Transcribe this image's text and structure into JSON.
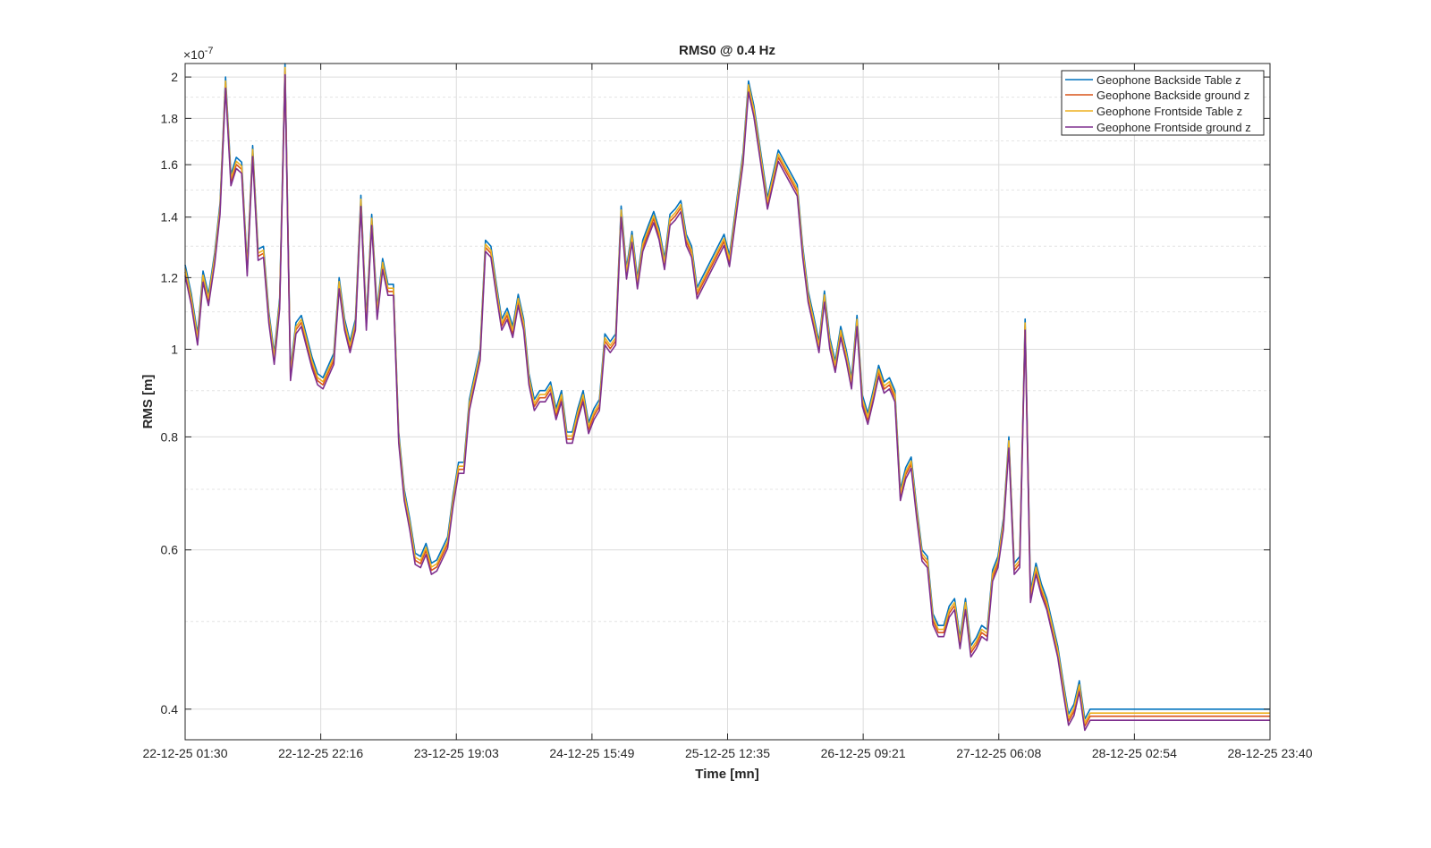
{
  "chart_data": {
    "type": "line",
    "title": "RMS0 @ 0.4 Hz",
    "xlabel": "Time [mn]",
    "ylabel": "RMS [m]",
    "y_exponent_label": "×10",
    "y_exponent_power": "-7",
    "y_scale": "log",
    "ylim": [
      3.7,
      20.7
    ],
    "y_ticks": [
      4,
      6,
      8,
      10,
      12,
      14,
      16,
      18,
      20
    ],
    "y_tick_labels": [
      "0.4",
      "0.6",
      "0.8",
      "1",
      "1.2",
      "1.4",
      "1.6",
      "1.8",
      "2"
    ],
    "xlim": [
      0,
      8
    ],
    "x_tick_labels": [
      "22-12-25 01:30",
      "22-12-25 22:16",
      "23-12-25 19:03",
      "24-12-25 15:49",
      "25-12-25 12:35",
      "26-12-25 09:21",
      "27-12-25 06:08",
      "28-12-25 02:54",
      "28-12-25 23:40"
    ],
    "grid": true,
    "minor_grid": true,
    "legend_position": "top-right",
    "colors": [
      "#0072BD",
      "#D95319",
      "#EDB120",
      "#7E2F8E"
    ],
    "base_series": [
      [
        0.0,
        12.4
      ],
      [
        0.046,
        11.5
      ],
      [
        0.092,
        10.4
      ],
      [
        0.132,
        12.2
      ],
      [
        0.172,
        11.5
      ],
      [
        0.218,
        12.8
      ],
      [
        0.257,
        14.5
      ],
      [
        0.298,
        20.0
      ],
      [
        0.338,
        15.6
      ],
      [
        0.377,
        16.3
      ],
      [
        0.417,
        16.1
      ],
      [
        0.458,
        12.4
      ],
      [
        0.498,
        16.8
      ],
      [
        0.538,
        12.9
      ],
      [
        0.578,
        13.0
      ],
      [
        0.617,
        11.0
      ],
      [
        0.657,
        9.9
      ],
      [
        0.697,
        11.4
      ],
      [
        0.737,
        20.7
      ],
      [
        0.777,
        9.5
      ],
      [
        0.817,
        10.7
      ],
      [
        0.857,
        10.9
      ],
      [
        0.936,
        9.8
      ],
      [
        0.977,
        9.4
      ],
      [
        1.016,
        9.3
      ],
      [
        1.096,
        9.9
      ],
      [
        1.136,
        12.0
      ],
      [
        1.176,
        10.8
      ],
      [
        1.216,
        10.2
      ],
      [
        1.256,
        10.8
      ],
      [
        1.296,
        14.8
      ],
      [
        1.336,
        10.8
      ],
      [
        1.376,
        14.1
      ],
      [
        1.416,
        11.1
      ],
      [
        1.456,
        12.6
      ],
      [
        1.496,
        11.8
      ],
      [
        1.536,
        11.8
      ],
      [
        1.575,
        8.1
      ],
      [
        1.616,
        7.0
      ],
      [
        1.656,
        6.5
      ],
      [
        1.696,
        5.95
      ],
      [
        1.736,
        5.9
      ],
      [
        1.776,
        6.1
      ],
      [
        1.816,
        5.8
      ],
      [
        1.856,
        5.85
      ],
      [
        1.936,
        6.2
      ],
      [
        1.976,
        6.9
      ],
      [
        2.016,
        7.5
      ],
      [
        2.056,
        7.5
      ],
      [
        2.096,
        8.8
      ],
      [
        2.175,
        10.0
      ],
      [
        2.215,
        13.2
      ],
      [
        2.255,
        13.0
      ],
      [
        2.295,
        11.8
      ],
      [
        2.335,
        10.8
      ],
      [
        2.375,
        11.1
      ],
      [
        2.416,
        10.6
      ],
      [
        2.456,
        11.5
      ],
      [
        2.496,
        10.8
      ],
      [
        2.535,
        9.4
      ],
      [
        2.575,
        8.8
      ],
      [
        2.615,
        9.0
      ],
      [
        2.655,
        9.0
      ],
      [
        2.695,
        9.2
      ],
      [
        2.735,
        8.6
      ],
      [
        2.775,
        9.0
      ],
      [
        2.815,
        8.1
      ],
      [
        2.855,
        8.1
      ],
      [
        2.895,
        8.6
      ],
      [
        2.935,
        9.0
      ],
      [
        2.975,
        8.3
      ],
      [
        3.015,
        8.6
      ],
      [
        3.055,
        8.8
      ],
      [
        3.095,
        10.4
      ],
      [
        3.135,
        10.2
      ],
      [
        3.175,
        10.4
      ],
      [
        3.215,
        14.4
      ],
      [
        3.255,
        12.3
      ],
      [
        3.295,
        13.5
      ],
      [
        3.335,
        12.0
      ],
      [
        3.375,
        13.2
      ],
      [
        3.415,
        13.7
      ],
      [
        3.455,
        14.2
      ],
      [
        3.495,
        13.6
      ],
      [
        3.535,
        12.6
      ],
      [
        3.575,
        14.1
      ],
      [
        3.615,
        14.3
      ],
      [
        3.655,
        14.6
      ],
      [
        3.695,
        13.4
      ],
      [
        3.735,
        13.0
      ],
      [
        3.775,
        11.7
      ],
      [
        3.974,
        13.4
      ],
      [
        4.014,
        12.7
      ],
      [
        4.114,
        16.5
      ],
      [
        4.154,
        19.8
      ],
      [
        4.194,
        18.6
      ],
      [
        4.294,
        14.7
      ],
      [
        4.374,
        16.6
      ],
      [
        4.514,
        15.2
      ],
      [
        4.554,
        13.0
      ],
      [
        4.594,
        11.6
      ],
      [
        4.634,
        10.9
      ],
      [
        4.674,
        10.2
      ],
      [
        4.714,
        11.6
      ],
      [
        4.754,
        10.3
      ],
      [
        4.794,
        9.7
      ],
      [
        4.834,
        10.6
      ],
      [
        4.874,
        10.0
      ],
      [
        4.914,
        9.3
      ],
      [
        4.954,
        10.9
      ],
      [
        4.994,
        8.9
      ],
      [
        5.034,
        8.5
      ],
      [
        5.074,
        9.0
      ],
      [
        5.114,
        9.6
      ],
      [
        5.154,
        9.2
      ],
      [
        5.194,
        9.3
      ],
      [
        5.234,
        9.0
      ],
      [
        5.274,
        7.0
      ],
      [
        5.314,
        7.4
      ],
      [
        5.354,
        7.6
      ],
      [
        5.394,
        6.7
      ],
      [
        5.434,
        6.0
      ],
      [
        5.474,
        5.9
      ],
      [
        5.514,
        5.1
      ],
      [
        5.554,
        4.95
      ],
      [
        5.594,
        4.95
      ],
      [
        5.634,
        5.2
      ],
      [
        5.674,
        5.3
      ],
      [
        5.714,
        4.8
      ],
      [
        5.754,
        5.3
      ],
      [
        5.794,
        4.7
      ],
      [
        5.834,
        4.8
      ],
      [
        5.874,
        4.95
      ],
      [
        5.914,
        4.9
      ],
      [
        5.954,
        5.7
      ],
      [
        5.994,
        5.9
      ],
      [
        6.034,
        6.5
      ],
      [
        6.074,
        8.0
      ],
      [
        6.114,
        5.8
      ],
      [
        6.154,
        5.9
      ],
      [
        6.194,
        10.8
      ],
      [
        6.234,
        5.4
      ],
      [
        6.274,
        5.8
      ],
      [
        6.314,
        5.5
      ],
      [
        6.354,
        5.3
      ],
      [
        6.434,
        4.7
      ],
      [
        6.474,
        4.3
      ],
      [
        6.514,
        3.95
      ],
      [
        6.554,
        4.05
      ],
      [
        6.594,
        4.3
      ],
      [
        6.634,
        3.9
      ],
      [
        6.674,
        4.0
      ],
      [
        8.0,
        4.0
      ]
    ],
    "series": [
      {
        "name": "Geophone Backside Table z",
        "offset": 1.0
      },
      {
        "name": "Geophone Backside ground z",
        "offset": 0.982
      },
      {
        "name": "Geophone Frontside Table z",
        "offset": 0.99
      },
      {
        "name": "Geophone Frontside ground z",
        "offset": 0.972
      }
    ]
  }
}
